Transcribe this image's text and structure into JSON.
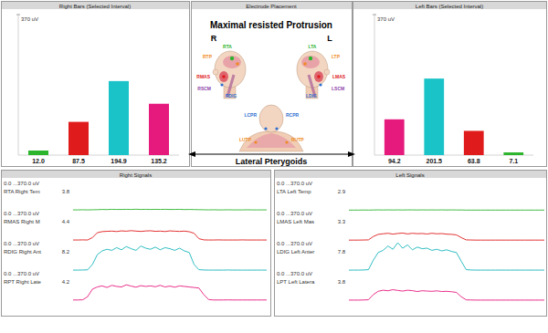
{
  "chart_data": [
    {
      "type": "bar",
      "title": "Right Bars (Selected Interval)",
      "categories": [
        null,
        null,
        null,
        null
      ],
      "values": [
        12.0,
        87.5,
        194.9,
        135.2
      ],
      "value_labels": [
        "12.0",
        "87.5",
        "194.9",
        "135.2"
      ],
      "colors": [
        "#2db42d",
        "#e01b1b",
        "#19c3c8",
        "#e6197d"
      ],
      "ylim": [
        0,
        370
      ],
      "yticks": [
        {
          "value": 370,
          "label": "370 uV"
        }
      ],
      "data_labels": true,
      "tick_labels": "y"
    },
    {
      "type": "bar",
      "title": "Left Bars (Selected Interval)",
      "categories": [
        null,
        null,
        null,
        null
      ],
      "values": [
        94.2,
        201.5,
        63.8,
        7.1
      ],
      "colors": [
        "#e6197d",
        "#19c3c8",
        "#e01b1b",
        "#2db42d"
      ],
      "ylim": [
        0,
        370
      ],
      "yticks": [
        {
          "value": 370,
          "label": "370 uV"
        }
      ],
      "data_labels": true,
      "tick_labels": "y"
    },
    {
      "type": "line",
      "title": "Right Signals",
      "x": [
        0,
        1,
        2,
        3,
        4,
        5,
        6,
        7,
        8,
        9,
        10,
        11,
        12,
        13,
        14,
        15,
        16,
        17,
        18,
        19,
        20,
        21,
        22,
        23,
        24,
        25,
        26,
        27,
        28,
        29,
        30,
        31,
        32,
        33,
        34,
        35,
        36,
        37,
        38,
        39,
        40
      ],
      "xlim": [
        0,
        40
      ],
      "ylim": [
        0,
        370
      ],
      "tick_labels": false,
      "series": [
        {
          "name": "RTA Right Tem",
          "color": "#2db42d",
          "annotation": 3.8,
          "scale_label": "0.0 ...370.0 uV",
          "values": [
            8,
            8,
            9,
            8,
            9,
            10,
            12,
            11,
            13,
            12,
            12,
            13,
            12,
            14,
            12,
            13,
            12,
            13,
            12,
            13,
            12,
            12,
            13,
            11,
            12,
            11,
            10,
            9,
            8,
            9,
            8,
            8,
            9,
            8,
            8,
            8,
            9,
            8,
            8,
            8,
            8
          ]
        },
        {
          "name": "RMAS Right M",
          "color": "#e01b1b",
          "annotation": 4.4,
          "scale_label": "0.0 ...370.0 uV",
          "values": [
            8,
            8,
            9,
            8,
            30,
            75,
            85,
            88,
            90,
            86,
            92,
            89,
            94,
            90,
            87,
            91,
            93,
            88,
            90,
            86,
            92,
            89,
            87,
            90,
            84,
            70,
            20,
            9,
            8,
            8,
            9,
            8,
            8,
            8,
            8,
            9,
            8,
            8,
            8,
            8,
            8
          ]
        },
        {
          "name": "RDIG Right Ant",
          "color": "#19b5bb",
          "annotation": 8.2,
          "scale_label": "0.0 ...370.0 uV",
          "values": [
            8,
            8,
            9,
            10,
            60,
            150,
            185,
            200,
            190,
            215,
            195,
            225,
            205,
            190,
            230,
            210,
            200,
            220,
            195,
            215,
            205,
            190,
            210,
            185,
            170,
            60,
            12,
            9,
            8,
            8,
            8,
            8,
            9,
            8,
            8,
            8,
            8,
            8,
            8,
            8,
            8
          ]
        },
        {
          "name": "RPT Right Late",
          "color": "#e6197d",
          "annotation": 4.2,
          "scale_label": "0.0 ...370.0 uV",
          "values": [
            10,
            10,
            12,
            40,
            110,
            130,
            140,
            125,
            145,
            135,
            130,
            150,
            138,
            128,
            142,
            135,
            140,
            132,
            145,
            130,
            138,
            128,
            140,
            135,
            130,
            125,
            120,
            60,
            14,
            10,
            10,
            10,
            11,
            10,
            10,
            10,
            10,
            10,
            10,
            10,
            10
          ]
        }
      ]
    },
    {
      "type": "line",
      "title": "Left Signals",
      "x": [
        0,
        1,
        2,
        3,
        4,
        5,
        6,
        7,
        8,
        9,
        10,
        11,
        12,
        13,
        14,
        15,
        16,
        17,
        18,
        19,
        20,
        21,
        22,
        23,
        24,
        25,
        26,
        27,
        28,
        29,
        30,
        31,
        32,
        33,
        34,
        35,
        36,
        37,
        38,
        39,
        40
      ],
      "xlim": [
        0,
        40
      ],
      "ylim": [
        0,
        370
      ],
      "tick_labels": false,
      "series": [
        {
          "name": "LTA Left Temp",
          "color": "#2db42d",
          "annotation": 2.9,
          "scale_label": "0.0 ...370.0 uV",
          "values": [
            6,
            6,
            6,
            7,
            6,
            7,
            8,
            7,
            8,
            7,
            8,
            7,
            8,
            8,
            7,
            8,
            7,
            8,
            7,
            8,
            7,
            8,
            7,
            7,
            6,
            6,
            6,
            6,
            6,
            6,
            6,
            6,
            6,
            6,
            6,
            6,
            6,
            6,
            6,
            6,
            6
          ]
        },
        {
          "name": "LMAS Left Mas",
          "color": "#e01b1b",
          "annotation": 3.3,
          "scale_label": "0.0 ...370.0 uV",
          "values": [
            7,
            7,
            7,
            8,
            9,
            40,
            60,
            65,
            70,
            62,
            68,
            72,
            64,
            70,
            66,
            68,
            63,
            70,
            65,
            67,
            62,
            60,
            55,
            30,
            9,
            8,
            7,
            7,
            7,
            7,
            7,
            7,
            7,
            7,
            7,
            7,
            7,
            7,
            7,
            7,
            7
          ]
        },
        {
          "name": "LDIG Left Anter",
          "color": "#19b5bb",
          "annotation": 7.8,
          "scale_label": "0.0 ...370.0 uV",
          "values": [
            8,
            8,
            8,
            9,
            12,
            100,
            170,
            190,
            230,
            200,
            260,
            210,
            240,
            195,
            220,
            205,
            210,
            190,
            200,
            185,
            195,
            180,
            170,
            90,
            12,
            9,
            8,
            8,
            8,
            8,
            8,
            8,
            8,
            8,
            8,
            8,
            8,
            8,
            8,
            8,
            8
          ]
        },
        {
          "name": "LPT Left Latera",
          "color": "#e6197d",
          "annotation": 3.8,
          "scale_label": "0.0 ...370.0 uV",
          "values": [
            9,
            9,
            9,
            10,
            12,
            60,
            90,
            100,
            95,
            105,
            98,
            92,
            100,
            96,
            88,
            95,
            92,
            90,
            94,
            88,
            90,
            86,
            80,
            40,
            11,
            10,
            9,
            9,
            9,
            9,
            9,
            9,
            9,
            9,
            9,
            9,
            9,
            9,
            9,
            9,
            9
          ]
        }
      ]
    }
  ],
  "diagram": {
    "title": "Electrode Placement",
    "heading": "Maximal resisted Protrusion",
    "sides": [
      "R",
      "L"
    ],
    "caption": "Lateral Pterygoids",
    "labels": [
      {
        "text": "RTA",
        "color": "#2db42d"
      },
      {
        "text": "RTP",
        "color": "#f08a24"
      },
      {
        "text": "RMAS",
        "color": "#e01b1b"
      },
      {
        "text": "RSCM",
        "color": "#8b3fa8"
      },
      {
        "text": "RDIG",
        "color": "#2f6fd0"
      },
      {
        "text": "LTA",
        "color": "#2db42d"
      },
      {
        "text": "LTP",
        "color": "#f08a24"
      },
      {
        "text": "LMAS",
        "color": "#e01b1b"
      },
      {
        "text": "LSCM",
        "color": "#8b3fa8"
      },
      {
        "text": "LDIG",
        "color": "#2f6fd0"
      },
      {
        "text": "LCPR",
        "color": "#2f6fd0"
      },
      {
        "text": "RCPR",
        "color": "#2f6fd0"
      },
      {
        "text": "LUTP",
        "color": "#f08a24"
      },
      {
        "text": "RUTP",
        "color": "#f08a24"
      }
    ]
  }
}
